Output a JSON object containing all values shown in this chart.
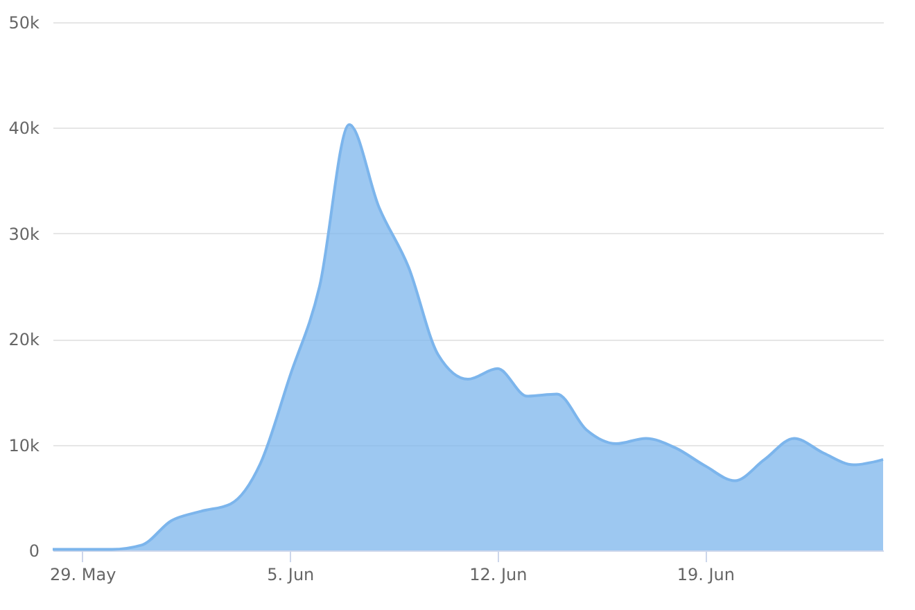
{
  "chart_data": {
    "type": "area",
    "x": [
      "--05-28",
      "--05-29",
      "--05-30",
      "--05-31",
      "--06-01",
      "--06-02",
      "--06-03",
      "--06-04",
      "--06-05",
      "--06-06",
      "--06-07",
      "--06-08",
      "--06-09",
      "--06-10",
      "--06-11",
      "--06-12",
      "--06-13",
      "--06-14",
      "--06-15",
      "--06-16",
      "--06-17",
      "--06-18",
      "--06-19",
      "--06-20",
      "--06-21",
      "--06-22",
      "--06-23",
      "--06-24",
      "--06-25"
    ],
    "series": [
      {
        "color": "#7cb5ec",
        "values": [
          100,
          100,
          100,
          500,
          2800,
          3700,
          4400,
          8200,
          16500,
          25000,
          40300,
          32500,
          26800,
          18500,
          16200,
          17200,
          14600,
          14800,
          11400,
          10100,
          10600,
          9700,
          8000,
          6600,
          8600,
          10600,
          9200,
          8100,
          8600
        ]
      }
    ],
    "xlim": [
      "--05-28",
      "--06-25"
    ],
    "xticks": [
      {
        "value": "--05-29",
        "label": "29. May"
      },
      {
        "value": "--06-05",
        "label": "5. Jun"
      },
      {
        "value": "--06-12",
        "label": "12. Jun"
      },
      {
        "value": "--06-19",
        "label": "19. Jun"
      }
    ],
    "ylim": [
      0,
      50000
    ],
    "yticks": [
      0,
      {
        "value": 10000,
        "label": "10k"
      },
      {
        "value": 20000,
        "label": "20k"
      },
      {
        "value": 30000,
        "label": "30k"
      },
      {
        "value": 40000,
        "label": "40k"
      },
      {
        "value": 50000,
        "label": "50k"
      }
    ],
    "grid": "y"
  }
}
